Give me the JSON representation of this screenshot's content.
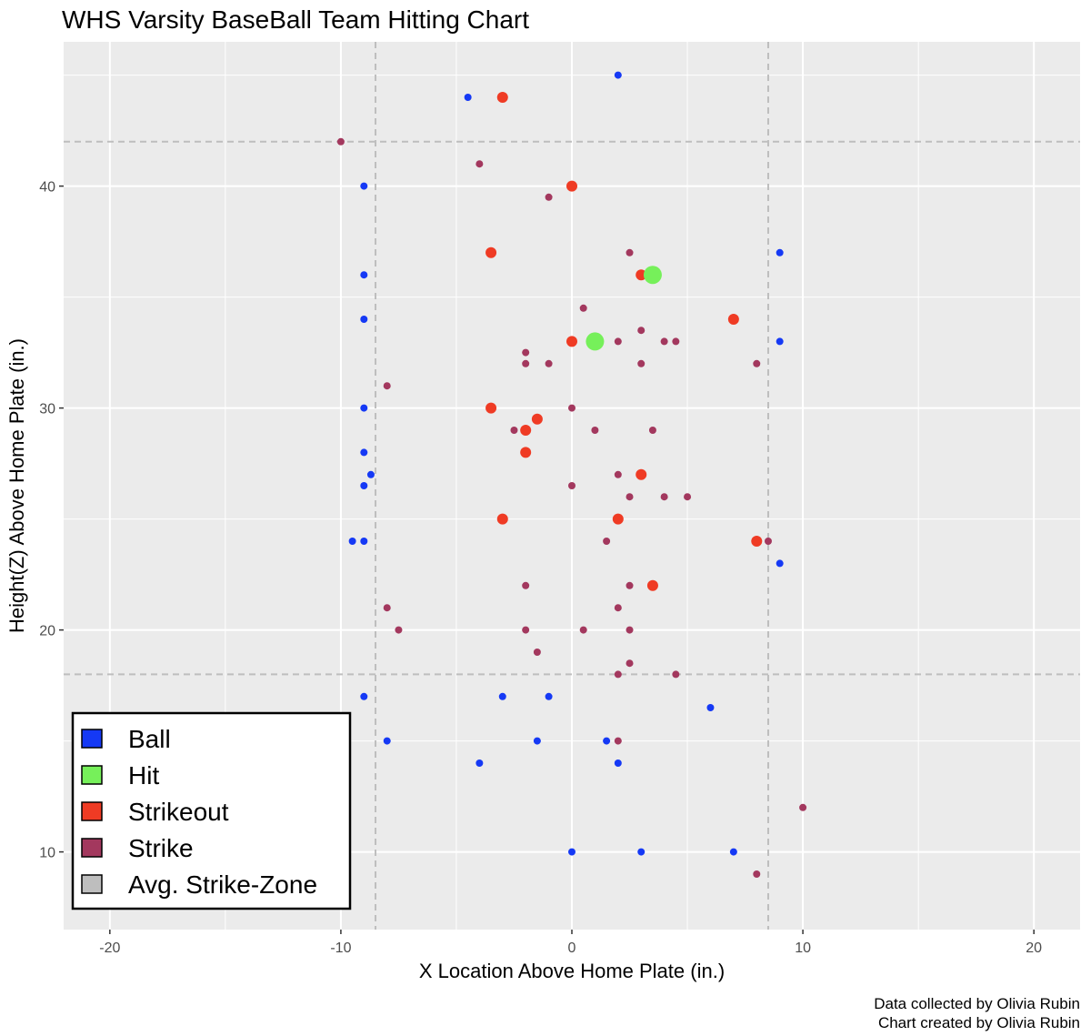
{
  "chart_data": {
    "type": "scatter",
    "title": "WHS Varsity BaseBall Team Hitting Chart",
    "xlabel": "X Location Above Home Plate (in.)",
    "ylabel": "Height(Z) Above Home Plate (in.)",
    "xlim": [
      -22,
      22
    ],
    "ylim": [
      6.5,
      46.5
    ],
    "x_ticks": [
      -20,
      -10,
      0,
      10,
      20
    ],
    "y_ticks": [
      10,
      20,
      30,
      40
    ],
    "x_tick_labels": [
      "-20",
      "-10",
      "0",
      "10",
      "20"
    ],
    "y_tick_labels": [
      "10",
      "20",
      "30",
      "40"
    ],
    "grid": true,
    "legend_position": "bottom-left",
    "strike_zone": {
      "x": [
        -8.5,
        8.5
      ],
      "y": [
        18,
        42
      ]
    },
    "captions": [
      "Data collected by Olivia Rubin",
      "Chart created by Olivia Rubin"
    ],
    "series": [
      {
        "name": "Ball",
        "color": "#1539f5",
        "size": "small",
        "points": [
          [
            2,
            45
          ],
          [
            -4.5,
            44
          ],
          [
            -9,
            40
          ],
          [
            -9,
            36
          ],
          [
            9,
            37
          ],
          [
            -9,
            34
          ],
          [
            9,
            33
          ],
          [
            -9,
            30
          ],
          [
            -9,
            28
          ],
          [
            -8.7,
            27
          ],
          [
            -9,
            26.5
          ],
          [
            -9.5,
            24
          ],
          [
            -9,
            24
          ],
          [
            9,
            23
          ],
          [
            -9,
            17
          ],
          [
            -3,
            17
          ],
          [
            -1,
            17
          ],
          [
            6,
            16.5
          ],
          [
            -8,
            15
          ],
          [
            -1.5,
            15
          ],
          [
            1.5,
            15
          ],
          [
            -4,
            14
          ],
          [
            2,
            14
          ],
          [
            0,
            10
          ],
          [
            3,
            10
          ],
          [
            7,
            10
          ]
        ]
      },
      {
        "name": "Hit",
        "color": "#76f05a",
        "size": "large",
        "points": [
          [
            3.5,
            36
          ],
          [
            1,
            33
          ]
        ]
      },
      {
        "name": "Strikeout",
        "color": "#ef3b24",
        "size": "medium",
        "points": [
          [
            -3,
            44
          ],
          [
            0,
            40
          ],
          [
            -3.5,
            37
          ],
          [
            3,
            36
          ],
          [
            7,
            34
          ],
          [
            0,
            33
          ],
          [
            -3.5,
            30
          ],
          [
            -1.5,
            29.5
          ],
          [
            -2,
            29
          ],
          [
            -2,
            28
          ],
          [
            3,
            27
          ],
          [
            -3,
            25
          ],
          [
            2,
            25
          ],
          [
            8,
            24
          ],
          [
            3.5,
            22
          ]
        ]
      },
      {
        "name": "Strike",
        "color": "#a3385e",
        "size": "small",
        "points": [
          [
            -10,
            42
          ],
          [
            -4,
            41
          ],
          [
            -1,
            39.5
          ],
          [
            2.5,
            37
          ],
          [
            0.5,
            34.5
          ],
          [
            3,
            33.5
          ],
          [
            2,
            33
          ],
          [
            4,
            33
          ],
          [
            4.5,
            33
          ],
          [
            -2,
            32.5
          ],
          [
            -2,
            32
          ],
          [
            -1,
            32
          ],
          [
            3,
            32
          ],
          [
            8,
            32
          ],
          [
            -8,
            31
          ],
          [
            0,
            30
          ],
          [
            -2.5,
            29
          ],
          [
            1,
            29
          ],
          [
            3.5,
            29
          ],
          [
            2,
            27
          ],
          [
            0,
            26.5
          ],
          [
            2.5,
            26
          ],
          [
            4,
            26
          ],
          [
            5,
            26
          ],
          [
            1.5,
            24
          ],
          [
            8.5,
            24
          ],
          [
            -2,
            22
          ],
          [
            2.5,
            22
          ],
          [
            -8,
            21
          ],
          [
            2,
            21
          ],
          [
            -7.5,
            20
          ],
          [
            -2,
            20
          ],
          [
            0.5,
            20
          ],
          [
            2.5,
            20
          ],
          [
            -1.5,
            19
          ],
          [
            2.5,
            18.5
          ],
          [
            2,
            18
          ],
          [
            4.5,
            18
          ],
          [
            2,
            15
          ],
          [
            10,
            12
          ],
          [
            8,
            9
          ]
        ]
      }
    ],
    "legend_entries": [
      {
        "label": "Ball",
        "color": "#1539f5"
      },
      {
        "label": "Hit",
        "color": "#76f05a"
      },
      {
        "label": "Strikeout",
        "color": "#ef3b24"
      },
      {
        "label": "Strike",
        "color": "#a3385e"
      },
      {
        "label": "Avg. Strike-Zone",
        "color": "#bebebe"
      }
    ]
  }
}
